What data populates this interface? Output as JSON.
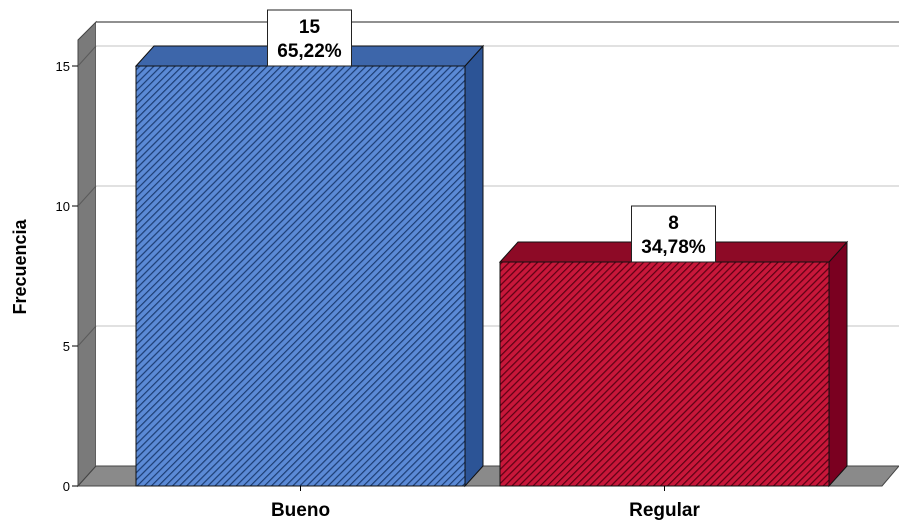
{
  "chart_data": {
    "type": "bar",
    "title": "",
    "xlabel": "",
    "ylabel": "Frecuencia",
    "categories": [
      "Bueno",
      "Regular"
    ],
    "values": [
      15,
      8
    ],
    "percent_labels": [
      "65,22%",
      "34,78%"
    ],
    "count_labels": [
      "15",
      "8"
    ],
    "yticks": [
      "0",
      "5",
      "10",
      "15"
    ],
    "ytick_values": [
      0,
      5,
      10,
      15
    ],
    "ylim": [
      0,
      15
    ],
    "grid": true,
    "bar_style": "3d-hatched",
    "colors": {
      "Bueno": "#4a7bc4",
      "Regular": "#b0112e"
    }
  }
}
